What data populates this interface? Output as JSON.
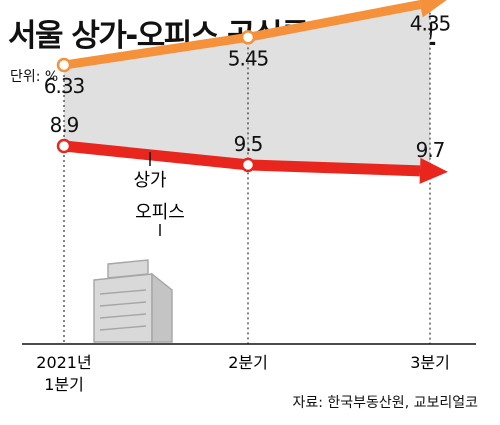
{
  "title": "서울 상가-오피스 공실률 추이 비교",
  "unit_label": "단위: %",
  "source": "자료: 한국부동산원, 교보리얼코",
  "chart_data": {
    "type": "line",
    "title": "서울 상가-오피스 공실률 추이 비교",
    "unit": "%",
    "categories": [
      [
        "2021년",
        "1분기"
      ],
      [
        "2분기"
      ],
      [
        "3분기"
      ]
    ],
    "series": [
      {
        "name": "상가",
        "values": [
          8.9,
          9.5,
          9.7
        ],
        "color": "#e8261d",
        "labels": [
          "8.9",
          "9.5",
          "9.7"
        ]
      },
      {
        "name": "오피스",
        "values": [
          6.33,
          5.45,
          4.35
        ],
        "color": "#f5913a",
        "labels": [
          "6.33",
          "5.45",
          "4.35"
        ]
      }
    ],
    "fill_between_color": "#e0e0e0",
    "grid": false
  }
}
